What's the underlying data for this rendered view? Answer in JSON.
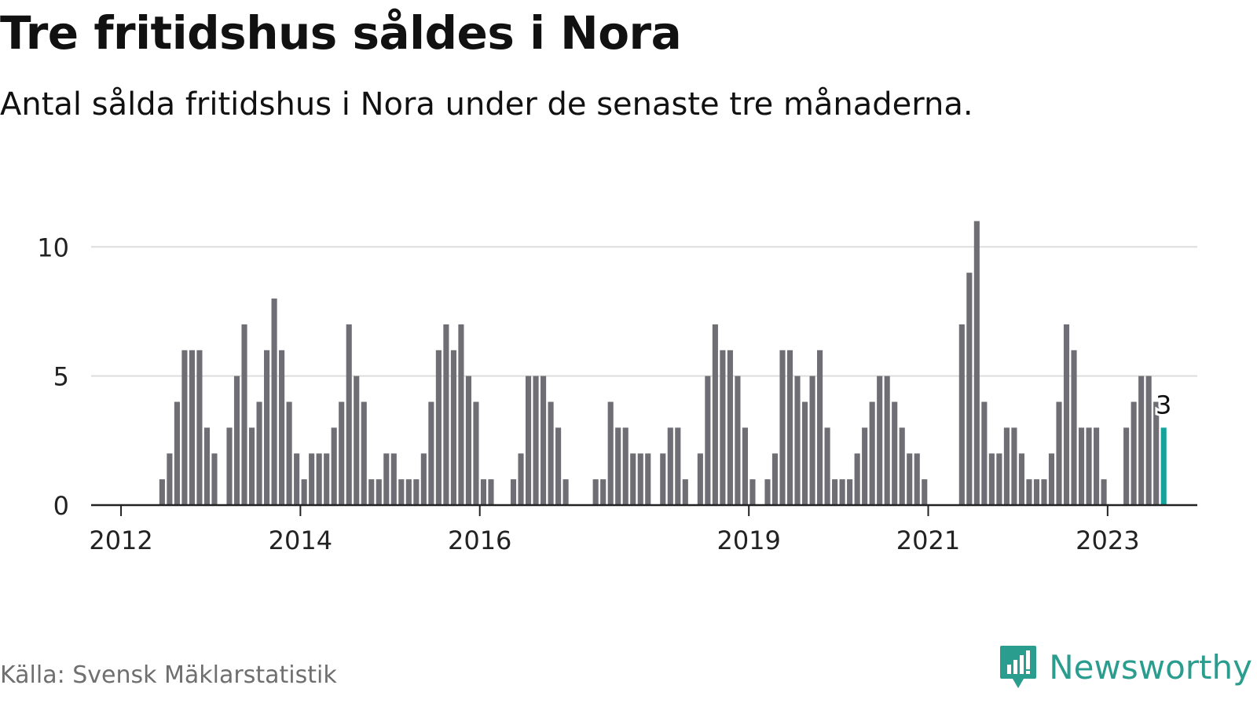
{
  "title": "Tre fritidshus såldes i Nora",
  "subtitle": "Antal sålda fritidshus i Nora under de senaste tre månaderna.",
  "source": "Källa: Svensk Mäklarstatistik",
  "brand": {
    "name": "Newsworthy",
    "icon": "newsworthy-logo-icon"
  },
  "colors": {
    "bar": "#6f6e74",
    "highlight": "#14a39a",
    "grid": "#dddddd",
    "axis": "#222222",
    "text": "#222222"
  },
  "chart_data": {
    "type": "bar",
    "title": "Tre fritidshus såldes i Nora",
    "subtitle": "Antal sålda fritidshus i Nora under de senaste tre månaderna.",
    "xlabel": "",
    "ylabel": "",
    "x_start": "2011-09",
    "x_end": "2023-12",
    "x_tick_labels": [
      "2012",
      "2014",
      "2016",
      "2019",
      "2021",
      "2023"
    ],
    "y_ticks": [
      0,
      5,
      10
    ],
    "ylim": [
      0,
      11.5
    ],
    "grid": true,
    "highlight_label": "3",
    "series": [
      {
        "x": [
          "2012-06",
          "2012-07",
          "2012-08",
          "2012-09",
          "2012-10",
          "2012-11",
          "2012-12",
          "2013-01",
          "2013-02",
          "2013-03",
          "2013-04",
          "2013-05",
          "2013-06",
          "2013-07",
          "2013-08",
          "2013-09",
          "2013-10",
          "2013-11",
          "2013-12",
          "2014-01",
          "2014-02",
          "2014-03",
          "2014-04",
          "2014-05",
          "2014-06",
          "2014-07",
          "2014-08",
          "2014-09",
          "2014-10",
          "2014-11",
          "2014-12",
          "2015-01",
          "2015-02",
          "2015-03",
          "2015-04",
          "2015-05",
          "2015-06",
          "2015-07",
          "2015-08",
          "2015-09",
          "2015-10",
          "2015-11",
          "2015-12",
          "2016-01",
          "2016-02",
          "2016-03",
          "2016-04",
          "2016-05",
          "2016-06",
          "2016-07",
          "2016-08",
          "2016-09",
          "2016-10",
          "2016-11",
          "2016-12",
          "2017-01",
          "2017-02",
          "2017-03",
          "2017-04",
          "2017-05",
          "2017-06",
          "2017-07",
          "2017-08",
          "2017-09",
          "2017-10",
          "2017-11",
          "2017-12",
          "2018-01",
          "2018-02",
          "2018-03",
          "2018-04",
          "2018-05",
          "2018-06",
          "2018-07",
          "2018-08",
          "2018-09",
          "2018-10",
          "2018-11",
          "2018-12",
          "2019-01",
          "2019-02",
          "2019-03",
          "2019-04",
          "2019-05",
          "2019-06",
          "2019-07",
          "2019-08",
          "2019-09",
          "2019-10",
          "2019-11",
          "2019-12",
          "2020-01",
          "2020-02",
          "2020-03",
          "2020-04",
          "2020-05",
          "2020-06",
          "2020-07",
          "2020-08",
          "2020-09",
          "2020-10",
          "2020-11",
          "2020-12",
          "2021-01",
          "2021-02",
          "2021-03",
          "2021-04",
          "2021-05",
          "2021-06",
          "2021-07",
          "2021-08",
          "2021-09",
          "2021-10",
          "2021-11",
          "2021-12",
          "2022-01",
          "2022-02",
          "2022-03",
          "2022-04",
          "2022-05",
          "2022-06",
          "2022-07",
          "2022-08",
          "2022-09",
          "2022-10",
          "2022-11",
          "2022-12",
          "2023-01",
          "2023-02",
          "2023-03",
          "2023-04",
          "2023-05",
          "2023-06",
          "2023-07",
          "2023-08"
        ],
        "values": [
          1,
          2,
          4,
          6,
          6,
          6,
          3,
          2,
          0,
          3,
          5,
          7,
          3,
          4,
          6,
          8,
          6,
          4,
          2,
          1,
          2,
          2,
          2,
          3,
          4,
          7,
          5,
          4,
          1,
          1,
          2,
          2,
          1,
          1,
          1,
          2,
          4,
          6,
          7,
          6,
          7,
          5,
          4,
          1,
          1,
          0,
          0,
          1,
          2,
          5,
          5,
          5,
          4,
          3,
          1,
          0,
          0,
          0,
          1,
          1,
          4,
          3,
          3,
          2,
          2,
          2,
          0,
          2,
          3,
          3,
          1,
          0,
          2,
          5,
          7,
          6,
          6,
          5,
          3,
          1,
          0,
          1,
          2,
          6,
          6,
          5,
          4,
          5,
          6,
          3,
          1,
          1,
          1,
          2,
          3,
          4,
          5,
          5,
          4,
          3,
          2,
          2,
          1,
          0,
          0,
          0,
          0,
          7,
          9,
          11,
          4,
          2,
          2,
          3,
          3,
          2,
          1,
          1,
          1,
          2,
          4,
          7,
          6,
          3,
          3,
          3,
          1,
          0,
          0,
          3,
          4,
          5,
          5,
          4,
          3
        ]
      }
    ]
  }
}
